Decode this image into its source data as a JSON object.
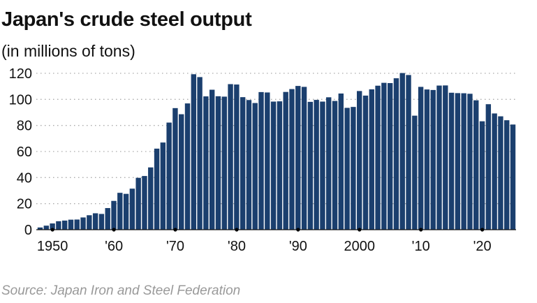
{
  "chart_data": {
    "type": "bar",
    "title": "Japan's crude steel output",
    "subtitle": "(in millions of tons)",
    "source": "Source: Japan Iron and Steel Federation",
    "bar_color": "#1b3f6e",
    "grid": "horizontal dotted",
    "ylim": [
      0,
      120
    ],
    "yticks": [
      0,
      20,
      40,
      60,
      80,
      100,
      120
    ],
    "xticks": [
      {
        "year": 1950,
        "label": "1950"
      },
      {
        "year": 1960,
        "label": "'60"
      },
      {
        "year": 1970,
        "label": "'70"
      },
      {
        "year": 1980,
        "label": "'80"
      },
      {
        "year": 1990,
        "label": "'90"
      },
      {
        "year": 2000,
        "label": "2000"
      },
      {
        "year": 2010,
        "label": "'10"
      },
      {
        "year": 2020,
        "label": "'20"
      }
    ],
    "x_start": 1948,
    "values": [
      1.7,
      3.1,
      4.8,
      6.5,
      7.0,
      7.7,
      7.8,
      9.4,
      11.1,
      12.6,
      12.1,
      16.6,
      22.1,
      28.3,
      27.5,
      31.5,
      39.8,
      41.2,
      47.8,
      62.2,
      66.9,
      82.2,
      93.3,
      88.6,
      96.9,
      119.3,
      117.1,
      102.3,
      107.4,
      102.4,
      102.1,
      111.7,
      111.4,
      101.7,
      99.5,
      97.2,
      105.6,
      105.3,
      98.3,
      98.5,
      105.7,
      107.9,
      110.3,
      109.6,
      98.1,
      99.6,
      98.3,
      101.6,
      98.8,
      104.5,
      93.5,
      94.2,
      106.4,
      102.9,
      107.7,
      110.5,
      112.7,
      112.5,
      116.2,
      120.2,
      118.7,
      87.5,
      109.6,
      107.6,
      107.2,
      110.6,
      110.7,
      105.1,
      104.8,
      104.7,
      104.3,
      99.3,
      83.2,
      96.3,
      89.2,
      87.0,
      84.0,
      80.7
    ]
  }
}
